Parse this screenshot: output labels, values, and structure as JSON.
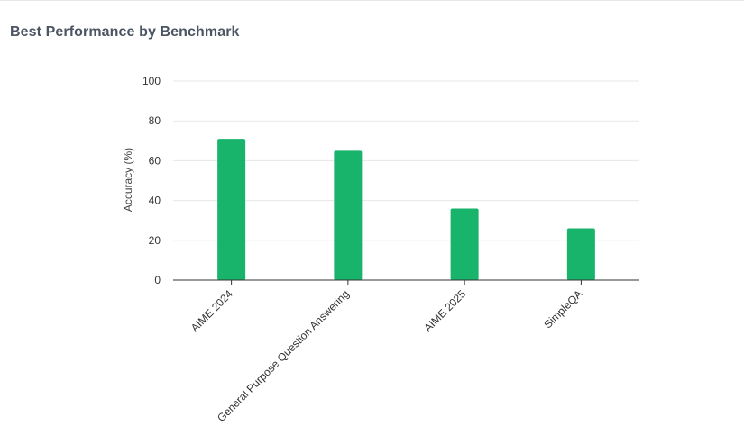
{
  "title": "Best Performance by Benchmark",
  "colors": {
    "bar": "#18b46b",
    "grid": "#e5e7eb",
    "axis": "#333333"
  },
  "chart_data": {
    "type": "bar",
    "title": "Best Performance by Benchmark",
    "xlabel": "",
    "ylabel": "Accuracy (%)",
    "categories": [
      "AIME 2024",
      "General Purpose Question Answering",
      "AIME 2025",
      "SimpleQA"
    ],
    "values": [
      71,
      65,
      36,
      26
    ],
    "ylim": [
      0,
      100
    ],
    "yticks": [
      0,
      20,
      40,
      60,
      80,
      100
    ],
    "grid": true,
    "legend": "none"
  }
}
